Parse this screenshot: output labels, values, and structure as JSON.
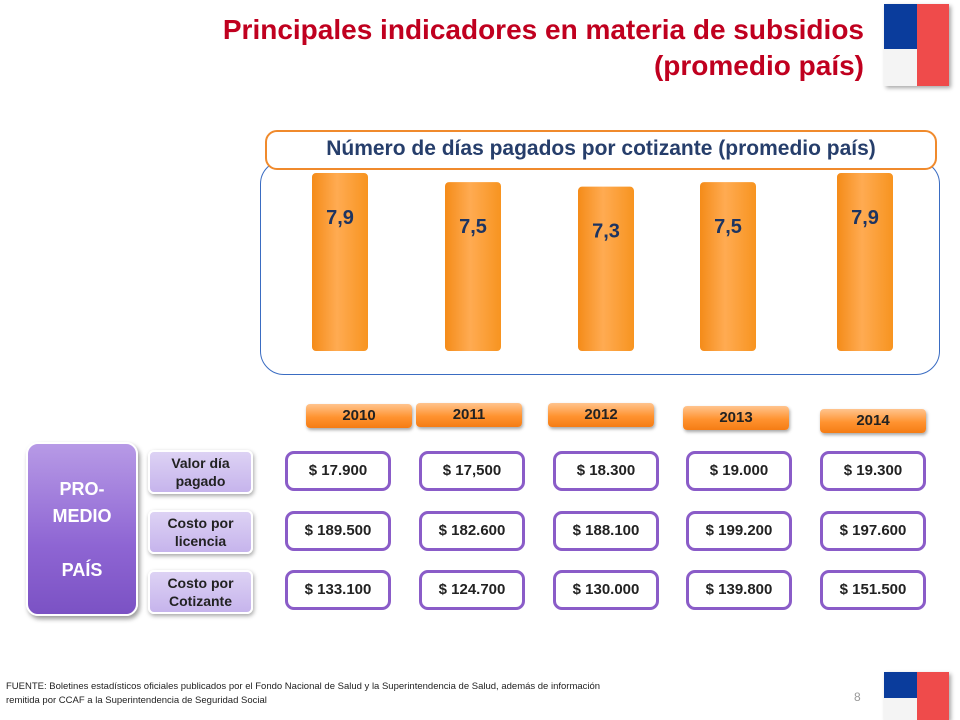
{
  "header": {
    "title_line1": "Principales indicadores en materia de subsidios",
    "title_line2": "(promedio país)"
  },
  "chart_data": {
    "type": "bar",
    "title": "Número de días pagados por cotizante (promedio país)",
    "categories": [
      "2010",
      "2011",
      "2012",
      "2013",
      "2014"
    ],
    "values": [
      7.9,
      7.5,
      7.3,
      7.5,
      7.9
    ],
    "value_labels": [
      "7,9",
      "7,5",
      "7,3",
      "7,5",
      "7,9"
    ],
    "bar_color": "#f7931e"
  },
  "table": {
    "group_label_line1": "PRO-",
    "group_label_line2": "MEDIO",
    "group_label_line3": "PAÍS",
    "years": [
      "2010",
      "2011",
      "2012",
      "2013",
      "2014"
    ],
    "rows": [
      {
        "label": "Valor día pagado",
        "values": [
          "$ 17.900",
          "$ 17,500",
          "$ 18.300",
          "$ 19.000",
          "$ 19.300"
        ]
      },
      {
        "label": "Costo por licencia",
        "values": [
          "$ 189.500",
          "$ 182.600",
          "$ 188.100",
          "$ 199.200",
          "$ 197.600"
        ]
      },
      {
        "label": "Costo por Cotizante",
        "values": [
          "$ 133.100",
          "$ 124.700",
          "$ 130.000",
          "$ 139.800",
          "$ 151.500"
        ]
      }
    ]
  },
  "footer": {
    "source": "FUENTE: Boletines estadísticos oficiales publicados por el Fondo Nacional de Salud y la Superintendencia de Salud, además de información remitida por CCAF a la Superintendencia de Seguridad Social",
    "page_number": "8"
  },
  "colors": {
    "title": "#c0001f",
    "accent_orange": "#f08a2c",
    "purple": "#8a5cc8",
    "panel_border": "#3a6cc2"
  }
}
